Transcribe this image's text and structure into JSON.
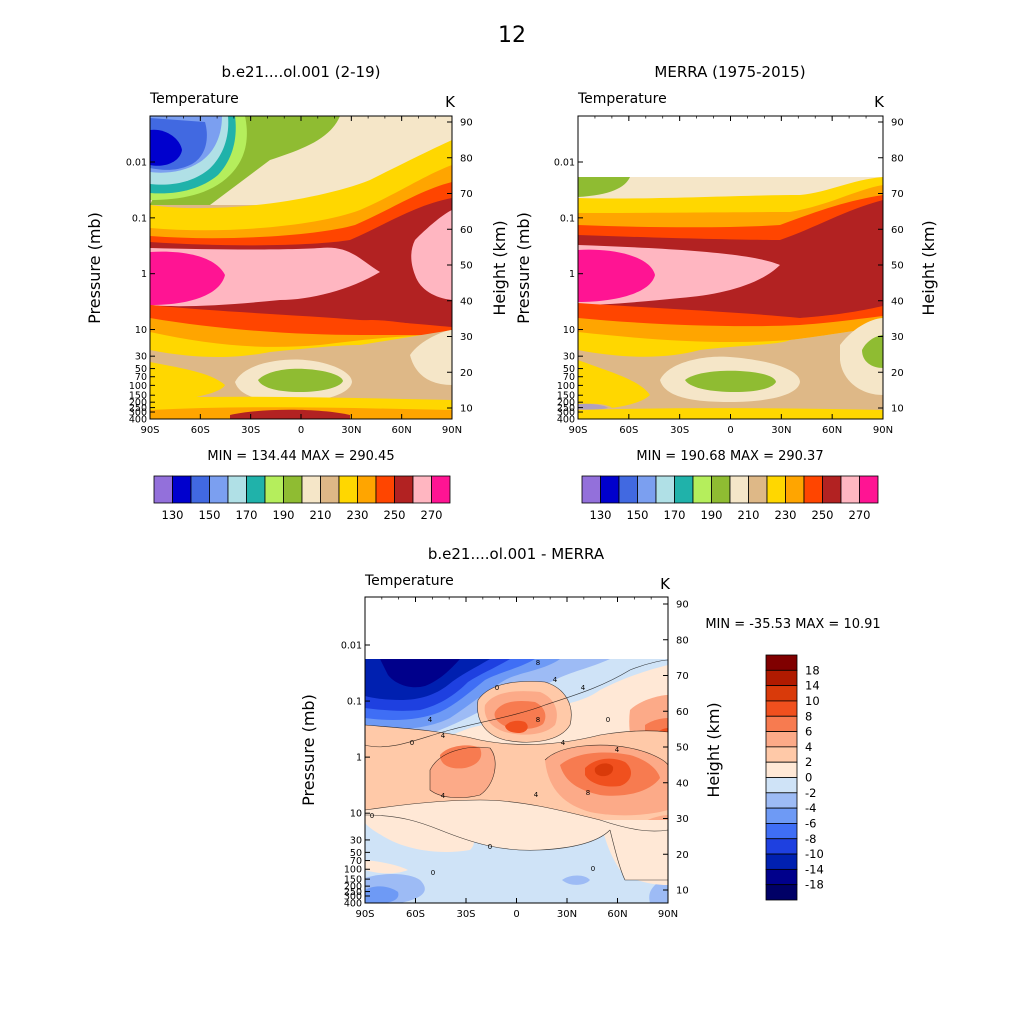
{
  "page_title": "12",
  "colors": {
    "full_palette": [
      "#9370DB",
      "#0000CD",
      "#4169E1",
      "#7B9FF0",
      "#B0E0E6",
      "#20B2AA",
      "#B5EE5C",
      "#8FBC32",
      "#F5E6C8",
      "#DEB887",
      "#FFD700",
      "#FFA500",
      "#FF4500",
      "#B22222",
      "#FFB6C1",
      "#FF1493"
    ],
    "diff_palette": [
      "#00008B",
      "#0020B0",
      "#1E40E0",
      "#3F6EF5",
      "#6E9AF5",
      "#9DBBF5",
      "#CFE3F7",
      "#FFE8D6",
      "#FFC9A8",
      "#FCAA88",
      "#F77B50",
      "#F0501E",
      "#D93A0A",
      "#B01A00",
      "#800000"
    ]
  },
  "chart_data": [
    {
      "type": "heatmap",
      "title": "b.e21....ol.001 (2-19)",
      "left_label": "Temperature",
      "right_label": "K",
      "xlabel": "",
      "ylabel": "Pressure (mb)",
      "ylabel_right": "Height (km)",
      "x_ticks": [
        "90S",
        "60S",
        "30S",
        "0",
        "30N",
        "60N",
        "90N"
      ],
      "pressure_ticks": [
        "0.01",
        "0.1",
        "1",
        "10",
        "30",
        "50",
        "70",
        "100",
        "150",
        "200",
        "250",
        "300",
        "400"
      ],
      "height_ticks": [
        "90",
        "80",
        "70",
        "60",
        "50",
        "40",
        "30",
        "20",
        "10"
      ],
      "min_max_text": "MIN = 134.44  MAX = 290.45",
      "colorbar_labels": [
        "130",
        "150",
        "170",
        "190",
        "210",
        "230",
        "250",
        "270"
      ],
      "min": 134.44,
      "max": 290.45
    },
    {
      "type": "heatmap",
      "title": "MERRA (1975-2015)",
      "left_label": "Temperature",
      "right_label": "K",
      "xlabel": "",
      "ylabel": "Pressure (mb)",
      "ylabel_right": "Height (km)",
      "x_ticks": [
        "90S",
        "60S",
        "30S",
        "0",
        "30N",
        "60N",
        "90N"
      ],
      "pressure_ticks": [
        "0.01",
        "0.1",
        "1",
        "10",
        "30",
        "50",
        "70",
        "100",
        "150",
        "200",
        "250",
        "300",
        "400"
      ],
      "height_ticks": [
        "90",
        "80",
        "70",
        "60",
        "50",
        "40",
        "30",
        "20",
        "10"
      ],
      "min_max_text": "MIN = 190.68  MAX = 290.37",
      "colorbar_labels": [
        "130",
        "150",
        "170",
        "190",
        "210",
        "230",
        "250",
        "270"
      ],
      "min": 190.68,
      "max": 290.37
    },
    {
      "type": "heatmap",
      "title": "b.e21....ol.001 - MERRA",
      "left_label": "Temperature",
      "right_label": "K",
      "xlabel": "",
      "ylabel": "Pressure (mb)",
      "ylabel_right": "Height (km)",
      "x_ticks": [
        "90S",
        "60S",
        "30S",
        "0",
        "30N",
        "60N",
        "90N"
      ],
      "pressure_ticks": [
        "0.01",
        "0.1",
        "1",
        "10",
        "30",
        "50",
        "70",
        "100",
        "150",
        "200",
        "250",
        "300",
        "400"
      ],
      "height_ticks": [
        "90",
        "80",
        "70",
        "60",
        "50",
        "40",
        "30",
        "20",
        "10"
      ],
      "min_max_text": "MIN = -35.53  MAX =  10.91",
      "colorbar_labels": [
        "18",
        "14",
        "10",
        "8",
        "6",
        "4",
        "2",
        "0",
        "-2",
        "-4",
        "-6",
        "-8",
        "-10",
        "-14",
        "-18"
      ],
      "contour_labels": [
        "8",
        "4",
        "0",
        "4",
        "4",
        "0",
        "0",
        "4",
        "8",
        "4",
        "4",
        "8",
        "4",
        "0",
        "0",
        "4",
        "0",
        "0"
      ],
      "min": -35.53,
      "max": 10.91
    }
  ]
}
